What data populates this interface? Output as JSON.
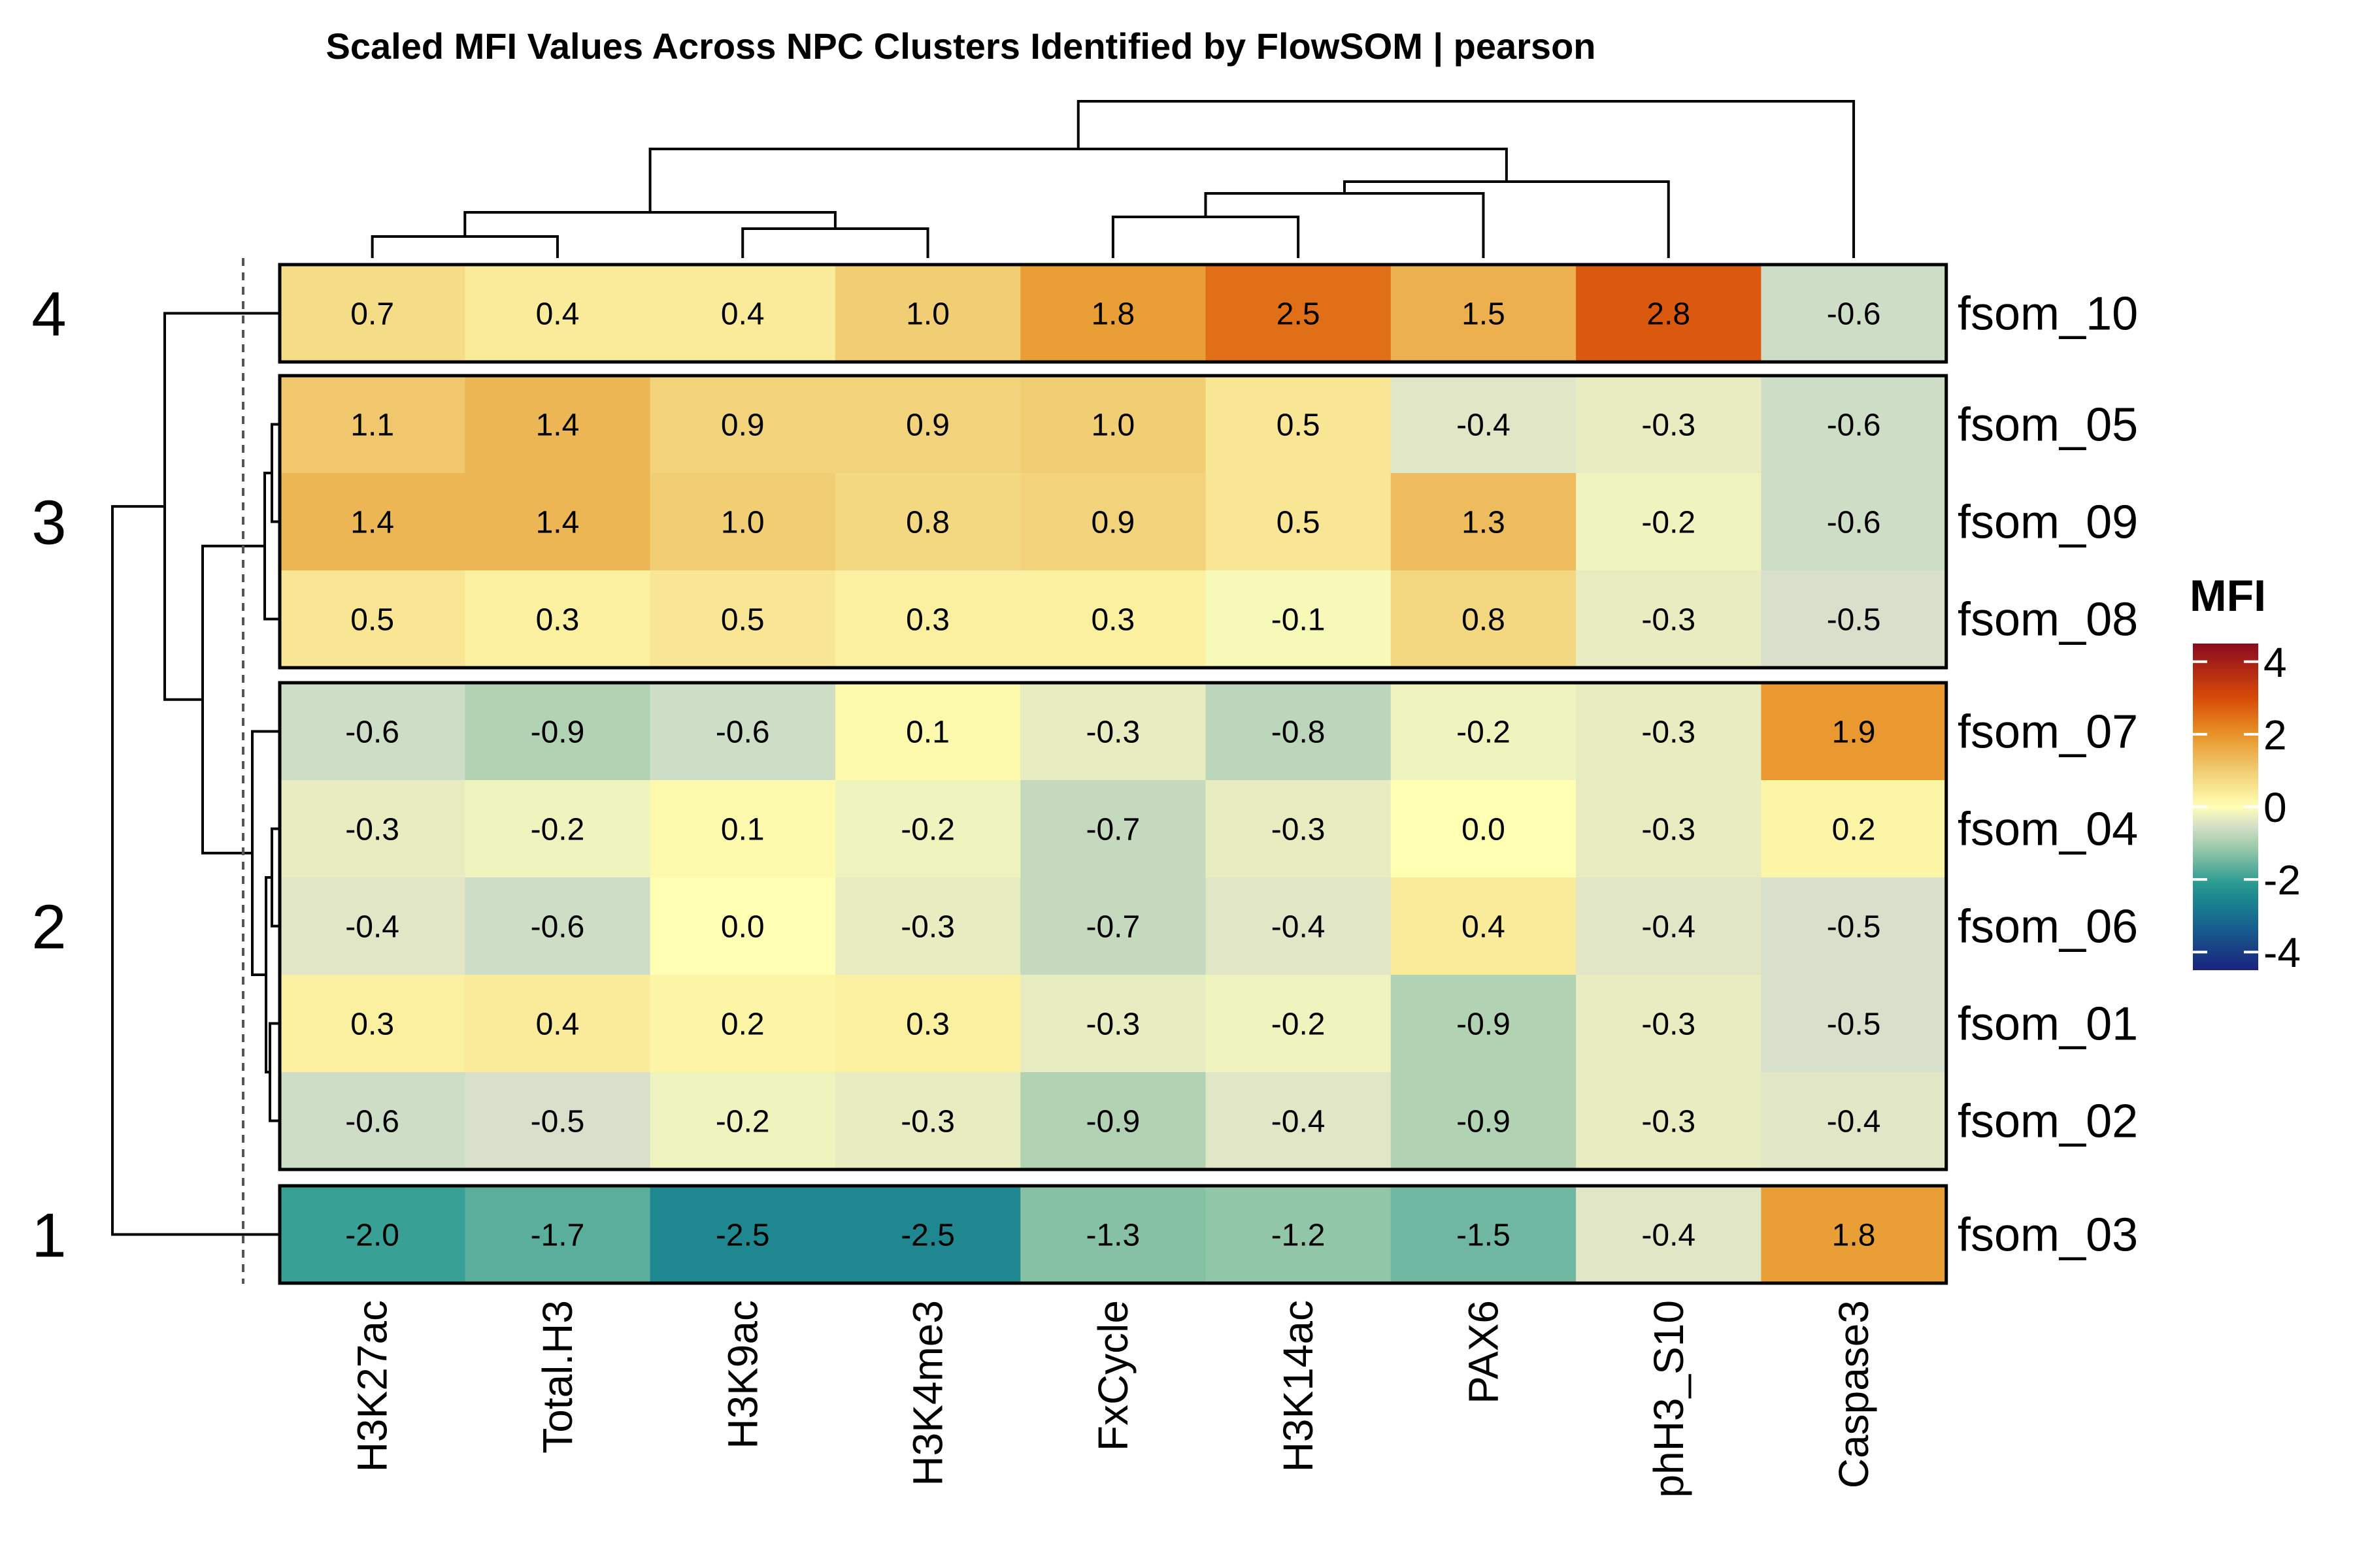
{
  "chart_data": {
    "type": "heatmap",
    "title": "Scaled MFI Values Across NPC Clusters Identified by FlowSOM | pearson",
    "columns": [
      "H3K27ac",
      "Total.H3",
      "H3K9ac",
      "H3K4me3",
      "FxCycle",
      "H3K14ac",
      "PAX6",
      "phH3_S10",
      "Caspase3"
    ],
    "rows": [
      "fsom_10",
      "fsom_05",
      "fsom_09",
      "fsom_08",
      "fsom_07",
      "fsom_04",
      "fsom_06",
      "fsom_01",
      "fsom_02",
      "fsom_03"
    ],
    "values": [
      [
        0.7,
        0.4,
        0.4,
        1.0,
        1.8,
        2.5,
        1.5,
        2.8,
        -0.6
      ],
      [
        1.1,
        1.4,
        0.9,
        0.9,
        1.0,
        0.5,
        -0.4,
        -0.3,
        -0.6
      ],
      [
        1.4,
        1.4,
        1.0,
        0.8,
        0.9,
        0.5,
        1.3,
        -0.2,
        -0.6
      ],
      [
        0.5,
        0.3,
        0.5,
        0.3,
        0.3,
        -0.1,
        0.8,
        -0.3,
        -0.5
      ],
      [
        -0.6,
        -0.9,
        -0.6,
        0.1,
        -0.3,
        -0.8,
        -0.2,
        -0.3,
        1.9
      ],
      [
        -0.3,
        -0.2,
        0.1,
        -0.2,
        -0.7,
        -0.3,
        0.0,
        -0.3,
        0.2
      ],
      [
        -0.4,
        -0.6,
        0.0,
        -0.3,
        -0.7,
        -0.4,
        0.4,
        -0.4,
        -0.5
      ],
      [
        0.3,
        0.4,
        0.2,
        0.3,
        -0.3,
        -0.2,
        -0.9,
        -0.3,
        -0.5
      ],
      [
        -0.6,
        -0.5,
        -0.2,
        -0.3,
        -0.9,
        -0.4,
        -0.9,
        -0.3,
        -0.4
      ],
      [
        -2.0,
        -1.7,
        -2.5,
        -2.5,
        -1.3,
        -1.2,
        -1.5,
        -0.4,
        1.8
      ]
    ],
    "value_labels": [
      [
        "0.7",
        "0.4",
        "0.4",
        "1.0",
        "1.8",
        "2.5",
        "1.5",
        "2.8",
        "-0.6"
      ],
      [
        "1.1",
        "1.4",
        "0.9",
        "0.9",
        "1.0",
        "0.5",
        "-0.4",
        "-0.3",
        "-0.6"
      ],
      [
        "1.4",
        "1.4",
        "1.0",
        "0.8",
        "0.9",
        "0.5",
        "1.3",
        "-0.2",
        "-0.6"
      ],
      [
        "0.5",
        "0.3",
        "0.5",
        "0.3",
        "0.3",
        "-0.1",
        "0.8",
        "-0.3",
        "-0.5"
      ],
      [
        "-0.6",
        "-0.9",
        "-0.6",
        "0.1",
        "-0.3",
        "-0.8",
        "-0.2",
        "-0.3",
        "1.9"
      ],
      [
        "-0.3",
        "-0.2",
        "0.1",
        "-0.2",
        "-0.7",
        "-0.3",
        "0.0",
        "-0.3",
        "0.2"
      ],
      [
        "-0.4",
        "-0.6",
        "0.0",
        "-0.3",
        "-0.7",
        "-0.4",
        "0.4",
        "-0.4",
        "-0.5"
      ],
      [
        "0.3",
        "0.4",
        "0.2",
        "0.3",
        "-0.3",
        "-0.2",
        "-0.9",
        "-0.3",
        "-0.5"
      ],
      [
        "-0.6",
        "-0.5",
        "-0.2",
        "-0.3",
        "-0.9",
        "-0.4",
        "-0.9",
        "-0.3",
        "-0.4"
      ],
      [
        "-2.0",
        "-1.7",
        "-2.5",
        "-2.5",
        "-1.3",
        "-1.2",
        "-1.5",
        "-0.4",
        "1.8"
      ]
    ],
    "row_clusters": [
      {
        "label": "4",
        "rows": [
          "fsom_10"
        ]
      },
      {
        "label": "3",
        "rows": [
          "fsom_05",
          "fsom_09",
          "fsom_08"
        ]
      },
      {
        "label": "2",
        "rows": [
          "fsom_07",
          "fsom_04",
          "fsom_06",
          "fsom_01",
          "fsom_02"
        ]
      },
      {
        "label": "1",
        "rows": [
          "fsom_03"
        ]
      }
    ],
    "column_dendrogram": true,
    "row_dendrogram": true,
    "legend": {
      "title": "MFI",
      "range": [
        -4.5,
        4.5
      ],
      "ticks": [
        4,
        2,
        0,
        -2,
        -4
      ],
      "tick_labels": [
        "4",
        "2",
        "0",
        "-2",
        "-4"
      ],
      "placement": "right"
    },
    "colorscale": [
      {
        "v": -4.5,
        "c": "#1a237e"
      },
      {
        "v": -3.2,
        "c": "#176590"
      },
      {
        "v": -2.2,
        "c": "#21968f"
      },
      {
        "v": -1.0,
        "c": "#a8cfae"
      },
      {
        "v": -0.5,
        "c": "#d8e0cb"
      },
      {
        "v": 0.0,
        "c": "#ffffb3"
      },
      {
        "v": 1.0,
        "c": "#f1cd74"
      },
      {
        "v": 2.0,
        "c": "#e89327"
      },
      {
        "v": 3.0,
        "c": "#d84a08"
      },
      {
        "v": 4.5,
        "c": "#8b0a1f"
      }
    ]
  }
}
